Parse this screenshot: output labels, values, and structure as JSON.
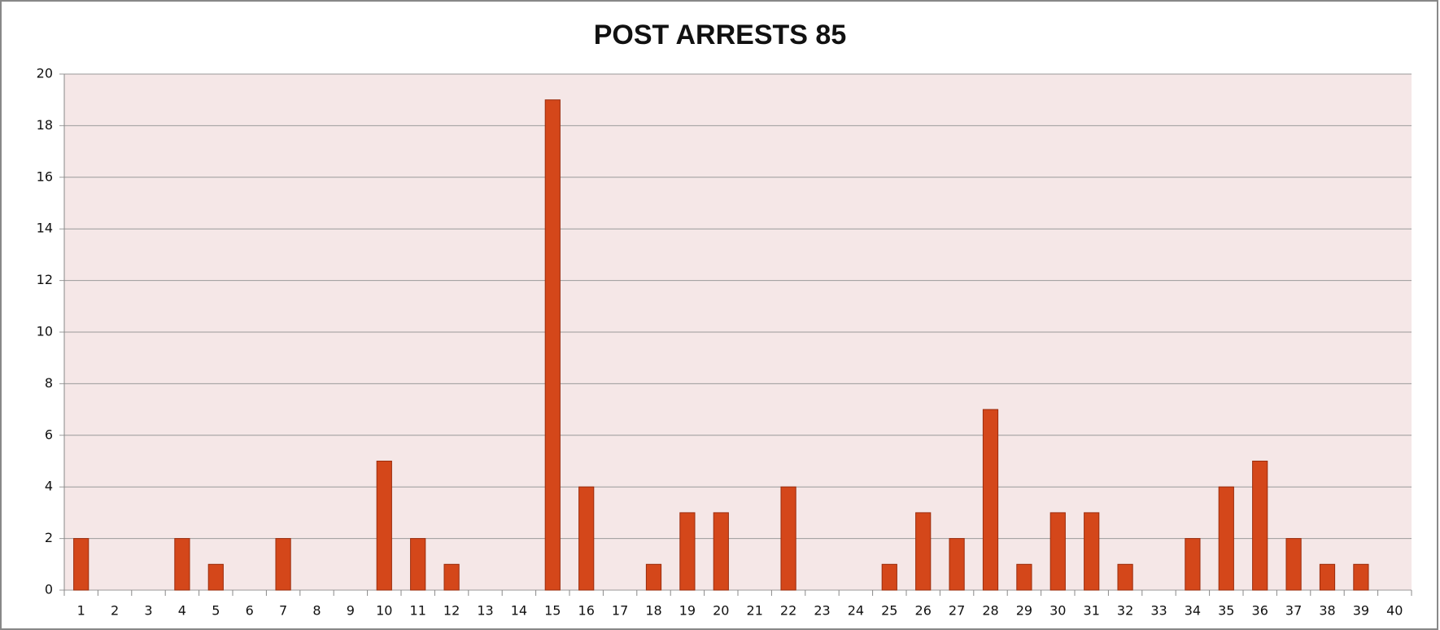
{
  "chart_data": {
    "type": "bar",
    "title": "POST ARRESTS 85",
    "categories": [
      "1",
      "2",
      "3",
      "4",
      "5",
      "6",
      "7",
      "8",
      "9",
      "10",
      "11",
      "12",
      "13",
      "14",
      "15",
      "16",
      "17",
      "18",
      "19",
      "20",
      "21",
      "22",
      "23",
      "24",
      "25",
      "26",
      "27",
      "28",
      "29",
      "30",
      "31",
      "32",
      "33",
      "34",
      "35",
      "36",
      "37",
      "38",
      "39",
      "40"
    ],
    "values": [
      2,
      0,
      0,
      2,
      1,
      0,
      2,
      0,
      0,
      5,
      2,
      1,
      0,
      0,
      19,
      4,
      0,
      1,
      3,
      3,
      0,
      4,
      0,
      0,
      1,
      3,
      2,
      7,
      1,
      3,
      3,
      1,
      0,
      2,
      4,
      5,
      2,
      1,
      1,
      0
    ],
    "color": "#d4471a",
    "ylim": [
      0,
      20
    ],
    "yticks": [
      0,
      2,
      4,
      6,
      8,
      10,
      12,
      14,
      16,
      18,
      20
    ],
    "grid": true
  }
}
